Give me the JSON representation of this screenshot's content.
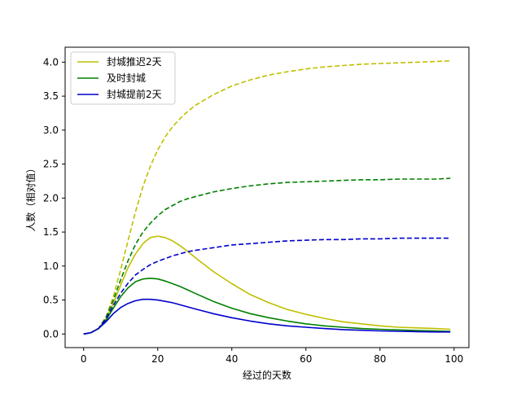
{
  "chart_data": {
    "type": "line",
    "title": "",
    "xlabel": "经过的天数",
    "ylabel": "人数（相对值）",
    "xlim": [
      -5,
      104
    ],
    "ylim": [
      -0.2,
      4.22
    ],
    "xticks": [
      0,
      20,
      40,
      60,
      80,
      100
    ],
    "yticks": [
      0.0,
      0.5,
      1.0,
      1.5,
      2.0,
      2.5,
      3.0,
      3.5,
      4.0
    ],
    "ytick_labels": [
      "0.0",
      "0.5",
      "1.0",
      "1.5",
      "2.0",
      "2.5",
      "3.0",
      "3.5",
      "4.0"
    ],
    "xtick_labels": [
      "0",
      "20",
      "40",
      "60",
      "80",
      "100"
    ],
    "grid": false,
    "legend_position": "top-left",
    "legend": [
      "封城推迟2天",
      "及时封城",
      "封城提前2天"
    ],
    "series": [
      {
        "name": "封城推迟2天",
        "color": "#bfbf00",
        "style": "solid",
        "x": [
          0,
          2,
          4,
          6,
          8,
          10,
          12,
          14,
          16,
          18,
          20,
          22,
          24,
          26,
          28,
          30,
          35,
          40,
          45,
          50,
          55,
          60,
          65,
          70,
          75,
          80,
          85,
          90,
          95,
          99
        ],
        "y": [
          0.0,
          0.02,
          0.08,
          0.22,
          0.45,
          0.72,
          0.98,
          1.18,
          1.33,
          1.42,
          1.44,
          1.42,
          1.37,
          1.3,
          1.22,
          1.13,
          0.92,
          0.74,
          0.58,
          0.46,
          0.36,
          0.29,
          0.23,
          0.18,
          0.15,
          0.12,
          0.1,
          0.09,
          0.08,
          0.07
        ]
      },
      {
        "name": "",
        "color": "#bfbf00",
        "style": "dashed",
        "x": [
          0,
          2,
          4,
          6,
          8,
          10,
          12,
          14,
          16,
          18,
          20,
          22,
          24,
          26,
          28,
          30,
          35,
          40,
          45,
          50,
          55,
          60,
          65,
          70,
          75,
          80,
          85,
          90,
          95,
          99
        ],
        "y": [
          0.0,
          0.02,
          0.08,
          0.25,
          0.55,
          0.95,
          1.38,
          1.8,
          2.17,
          2.47,
          2.71,
          2.9,
          3.05,
          3.17,
          3.27,
          3.36,
          3.52,
          3.65,
          3.74,
          3.81,
          3.86,
          3.9,
          3.93,
          3.95,
          3.97,
          3.98,
          3.99,
          4.0,
          4.01,
          4.02
        ]
      },
      {
        "name": "及时封城",
        "color": "#008000",
        "style": "solid",
        "x": [
          0,
          2,
          4,
          6,
          8,
          10,
          12,
          14,
          16,
          18,
          20,
          22,
          24,
          26,
          28,
          30,
          35,
          40,
          45,
          50,
          55,
          60,
          65,
          70,
          75,
          80,
          85,
          90,
          95,
          99
        ],
        "y": [
          0.0,
          0.02,
          0.08,
          0.2,
          0.38,
          0.55,
          0.68,
          0.77,
          0.81,
          0.82,
          0.81,
          0.78,
          0.74,
          0.7,
          0.65,
          0.6,
          0.48,
          0.38,
          0.3,
          0.24,
          0.19,
          0.15,
          0.12,
          0.1,
          0.08,
          0.07,
          0.06,
          0.05,
          0.045,
          0.04
        ]
      },
      {
        "name": "",
        "color": "#008000",
        "style": "dashed",
        "x": [
          0,
          2,
          4,
          6,
          8,
          10,
          12,
          14,
          16,
          18,
          20,
          22,
          24,
          26,
          28,
          30,
          35,
          40,
          45,
          50,
          55,
          60,
          65,
          70,
          75,
          80,
          85,
          90,
          95,
          99
        ],
        "y": [
          0.0,
          0.02,
          0.08,
          0.24,
          0.5,
          0.8,
          1.08,
          1.32,
          1.5,
          1.63,
          1.74,
          1.83,
          1.89,
          1.95,
          1.99,
          2.02,
          2.09,
          2.14,
          2.18,
          2.21,
          2.23,
          2.24,
          2.25,
          2.26,
          2.27,
          2.27,
          2.28,
          2.28,
          2.28,
          2.29
        ]
      },
      {
        "name": "封城提前2天",
        "color": "#0000cc",
        "style": "solid",
        "x": [
          0,
          2,
          4,
          6,
          8,
          10,
          12,
          14,
          16,
          18,
          20,
          22,
          24,
          26,
          28,
          30,
          35,
          40,
          45,
          50,
          55,
          60,
          65,
          70,
          75,
          80,
          85,
          90,
          95,
          99
        ],
        "y": [
          0.0,
          0.02,
          0.08,
          0.18,
          0.3,
          0.39,
          0.45,
          0.49,
          0.51,
          0.51,
          0.5,
          0.48,
          0.46,
          0.43,
          0.4,
          0.37,
          0.3,
          0.24,
          0.19,
          0.15,
          0.12,
          0.1,
          0.08,
          0.065,
          0.055,
          0.045,
          0.04,
          0.035,
          0.03,
          0.03
        ]
      },
      {
        "name": "",
        "color": "#0000cc",
        "style": "dashed",
        "x": [
          0,
          2,
          4,
          6,
          8,
          10,
          12,
          14,
          16,
          18,
          20,
          22,
          24,
          26,
          28,
          30,
          35,
          40,
          45,
          50,
          55,
          60,
          65,
          70,
          75,
          80,
          85,
          90,
          95,
          99
        ],
        "y": [
          0.0,
          0.02,
          0.08,
          0.22,
          0.42,
          0.6,
          0.75,
          0.87,
          0.95,
          1.02,
          1.07,
          1.11,
          1.15,
          1.18,
          1.21,
          1.23,
          1.27,
          1.31,
          1.33,
          1.35,
          1.37,
          1.38,
          1.39,
          1.39,
          1.4,
          1.4,
          1.41,
          1.41,
          1.41,
          1.41
        ]
      }
    ]
  }
}
